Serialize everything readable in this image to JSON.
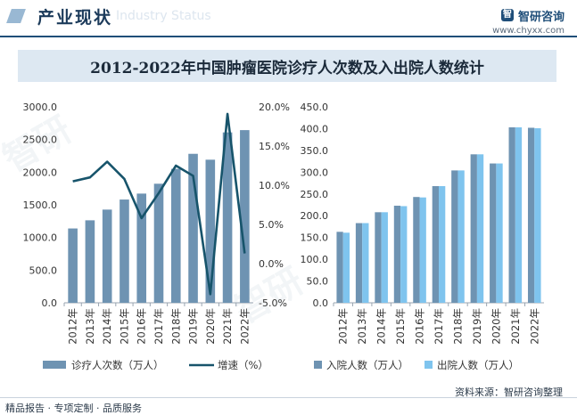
{
  "header": {
    "section_title": "产业现状",
    "ghost_text": "Industry Status",
    "brand_name": "智研咨询",
    "brand_mark": "智",
    "brand_url": "www.chyxx.com"
  },
  "banner_title": "2012-2022年中国肿瘤医院诊疗人次数及入出院人数统计",
  "chart_data": [
    {
      "type": "bar+line",
      "categories": [
        "2012年",
        "2013年",
        "2014年",
        "2015年",
        "2016年",
        "2017年",
        "2018年",
        "2019年",
        "2020年",
        "2021年",
        "2022年"
      ],
      "series": [
        {
          "name": "诊疗人次数（万人）",
          "type": "bar",
          "axis": "left",
          "values": [
            1138,
            1263,
            1427,
            1581,
            1672,
            1823,
            2051,
            2281,
            2191,
            2609,
            2644
          ]
        },
        {
          "name": "增速（%）",
          "type": "line",
          "axis": "right",
          "values": [
            10.5,
            11.0,
            13.0,
            10.8,
            5.8,
            9.0,
            12.5,
            11.2,
            -3.9,
            19.1,
            1.3
          ]
        }
      ],
      "y_left": {
        "min": 0,
        "max": 3000,
        "ticks": [
          "0.0",
          "500.0",
          "1000.0",
          "1500.0",
          "2000.0",
          "2500.0",
          "3000.0"
        ]
      },
      "y_right": {
        "min": -5,
        "max": 20,
        "ticks": [
          "-5.0%",
          "0.0%",
          "5.0%",
          "10.0%",
          "15.0%",
          "20.0%"
        ]
      },
      "legend": [
        "诊疗人次数（万人）",
        "增速（%）"
      ],
      "colors": {
        "bar": "#6e93b2",
        "line": "#17546b"
      }
    },
    {
      "type": "bar",
      "categories": [
        "2012年",
        "2013年",
        "2014年",
        "2015年",
        "2016年",
        "2017年",
        "2018年",
        "2019年",
        "2020年",
        "2021年",
        "2022年"
      ],
      "series": [
        {
          "name": "入院人数（万人）",
          "values": [
            163,
            183,
            208,
            223,
            243,
            268,
            304,
            341,
            320,
            403,
            402
          ]
        },
        {
          "name": "出院人数（万人）",
          "values": [
            161,
            183,
            208,
            222,
            242,
            268,
            304,
            341,
            320,
            403,
            401
          ]
        }
      ],
      "y": {
        "min": 0,
        "max": 450,
        "ticks": [
          "0.0",
          "50.0",
          "100.0",
          "150.0",
          "200.0",
          "250.0",
          "300.0",
          "350.0",
          "400.0",
          "450.0"
        ]
      },
      "legend": [
        "入院人数（万人）",
        "出院人数（万人）"
      ],
      "colors": {
        "in": "#6e93b2",
        "out": "#7fc4ee"
      }
    }
  ],
  "footer": {
    "left": "精品报告 · 专项定制 · 品质服务",
    "source": "资料来源：智研咨询整理"
  }
}
